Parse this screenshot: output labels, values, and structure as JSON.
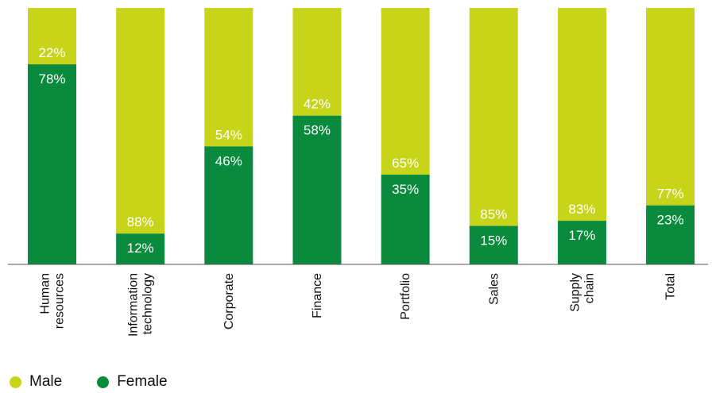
{
  "chart_data": {
    "type": "bar",
    "stacked": true,
    "orientation": "vertical",
    "categories": [
      "Human resources",
      "Information technology",
      "Corporate",
      "Finance",
      "Portfolio",
      "Sales",
      "Supply chain",
      "Total"
    ],
    "category_lines": [
      [
        "Human",
        "resources"
      ],
      [
        "Information",
        "technology"
      ],
      [
        "Corporate"
      ],
      [
        "Finance"
      ],
      [
        "Portfolio"
      ],
      [
        "Sales"
      ],
      [
        "Supply",
        "chain"
      ],
      [
        "Total"
      ]
    ],
    "series": [
      {
        "name": "Female",
        "color": "#0a8a3c",
        "values": [
          78,
          12,
          46,
          58,
          35,
          15,
          17,
          23
        ],
        "labels": [
          "78%",
          "12%",
          "46%",
          "58%",
          "35%",
          "15%",
          "17%",
          "23%"
        ]
      },
      {
        "name": "Male",
        "color": "#c8d419",
        "values": [
          22,
          88,
          54,
          42,
          65,
          85,
          83,
          77
        ],
        "labels": [
          "22%",
          "88%",
          "54%",
          "42%",
          "65%",
          "85%",
          "83%",
          "77%"
        ]
      }
    ],
    "ylim": [
      0,
      100
    ],
    "grid": false,
    "legend_position": "bottom-left",
    "legend": [
      {
        "name": "Male",
        "color": "#c8d419"
      },
      {
        "name": "Female",
        "color": "#0a8a3c"
      }
    ]
  }
}
